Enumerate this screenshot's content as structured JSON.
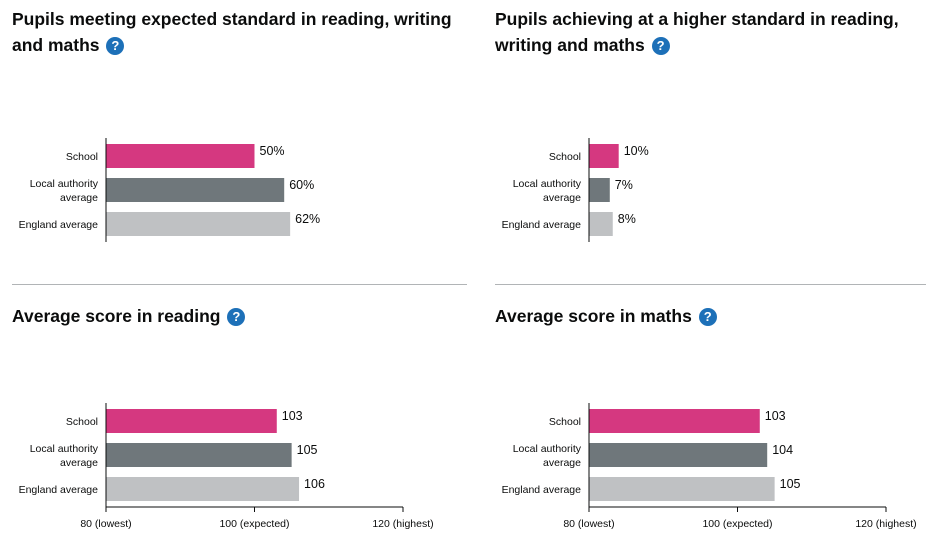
{
  "colors": {
    "school": "#d53880",
    "local": "#6f777b",
    "england": "#bfc1c3",
    "axis": "#0b0c0c",
    "help": "#1d70b8"
  },
  "icons": {
    "help": "question-mark-icon"
  },
  "chart_data": [
    {
      "type": "bar",
      "title": "Pupils meeting expected standard in reading, writing and maths",
      "categories": [
        [
          "School"
        ],
        [
          "Local authority",
          "average"
        ],
        [
          "England average"
        ]
      ],
      "values": [
        50,
        60,
        62
      ],
      "value_labels": [
        "50%",
        "60%",
        "62%"
      ],
      "xlim": [
        0,
        100
      ],
      "ticks": []
    },
    {
      "type": "bar",
      "title": "Pupils achieving at a higher standard in reading, writing and maths",
      "categories": [
        [
          "School"
        ],
        [
          "Local authority",
          "average"
        ],
        [
          "England average"
        ]
      ],
      "values": [
        10,
        7,
        8
      ],
      "value_labels": [
        "10%",
        "7%",
        "8%"
      ],
      "xlim": [
        0,
        100
      ],
      "ticks": []
    },
    {
      "type": "bar",
      "title": "Average score in reading",
      "categories": [
        [
          "School"
        ],
        [
          "Local authority",
          "average"
        ],
        [
          "England average"
        ]
      ],
      "values": [
        103,
        105,
        106
      ],
      "value_labels": [
        "103",
        "105",
        "106"
      ],
      "xlim": [
        80,
        120
      ],
      "ticks": [
        {
          "value": 80,
          "label": "80 (lowest)"
        },
        {
          "value": 100,
          "label": "100 (expected)"
        },
        {
          "value": 120,
          "label": "120 (highest)"
        }
      ]
    },
    {
      "type": "bar",
      "title": "Average score in maths",
      "categories": [
        [
          "School"
        ],
        [
          "Local authority",
          "average"
        ],
        [
          "England average"
        ]
      ],
      "values": [
        103,
        104,
        105
      ],
      "value_labels": [
        "103",
        "104",
        "105"
      ],
      "xlim": [
        80,
        120
      ],
      "ticks": [
        {
          "value": 80,
          "label": "80 (lowest)"
        },
        {
          "value": 100,
          "label": "100 (expected)"
        },
        {
          "value": 120,
          "label": "120 (highest)"
        }
      ]
    }
  ]
}
